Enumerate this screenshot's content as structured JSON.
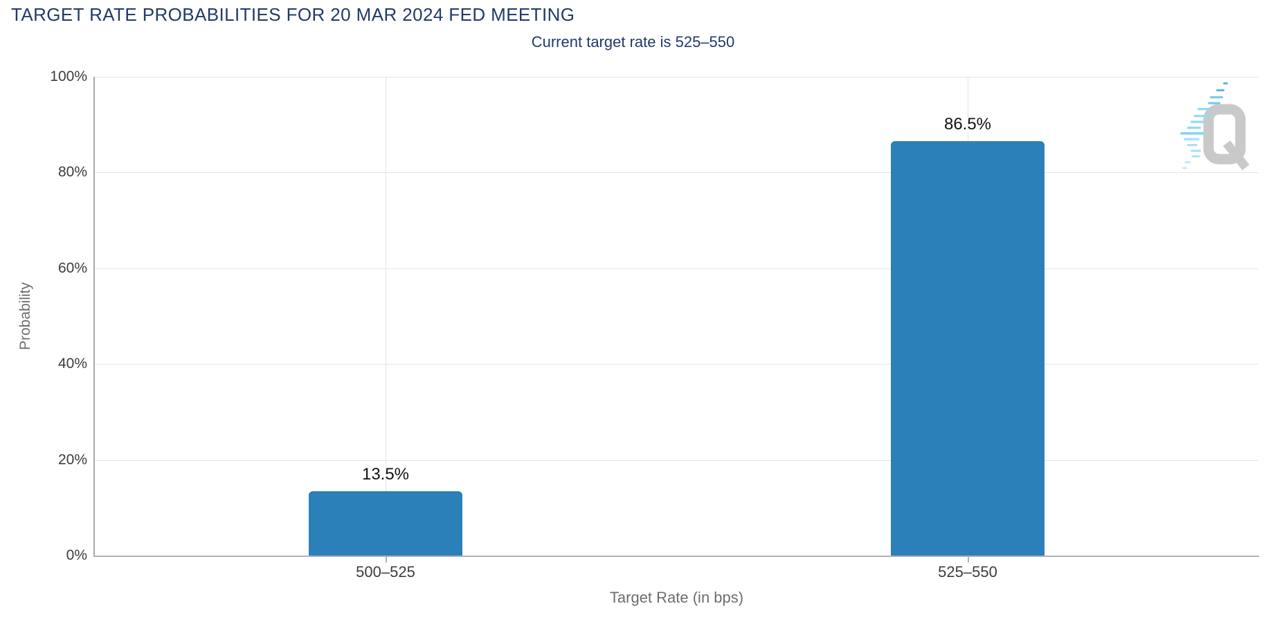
{
  "header": {
    "title": "TARGET RATE PROBABILITIES FOR 20 MAR 2024 FED MEETING",
    "subtitle": "Current target rate is 525–550"
  },
  "watermark": {
    "letter": "Q"
  },
  "colors": {
    "bar": "#2b80b9",
    "title_text": "#22396b",
    "tick_label": "#3c3c3c",
    "axis_title": "#6d6d6d",
    "gridline": "#e4e4e4",
    "axis_line": "#b1b1b1",
    "data_label": "#121212",
    "watermark_gray": "#c9c9c9",
    "watermark_cyan": "#9edff5"
  },
  "chart_data": {
    "type": "bar",
    "title": "TARGET RATE PROBABILITIES FOR 20 MAR 2024 FED MEETING",
    "subtitle": "Current target rate is 525–550",
    "categories": [
      "500–525",
      "525–550"
    ],
    "values": [
      13.5,
      86.5
    ],
    "data_labels": [
      "13.5%",
      "86.5%"
    ],
    "xlabel": "Target Rate (in bps)",
    "ylabel": "Probability",
    "ylim": [
      0,
      100
    ],
    "yticks": [
      {
        "value": 0,
        "label": "0%"
      },
      {
        "value": 20,
        "label": "20%"
      },
      {
        "value": 40,
        "label": "40%"
      },
      {
        "value": 60,
        "label": "60%"
      },
      {
        "value": 80,
        "label": "80%"
      },
      {
        "value": 100,
        "label": "100%"
      }
    ],
    "grid": true,
    "legend": false
  }
}
